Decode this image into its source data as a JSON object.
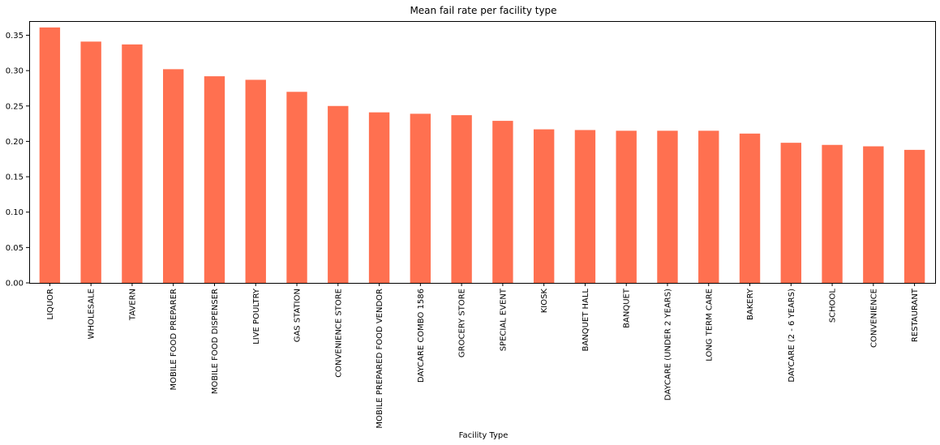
{
  "chart_data": {
    "type": "bar",
    "title": "Mean fail rate per facility type",
    "xlabel": "Facility Type",
    "ylabel": "",
    "ylim": [
      0,
      0.37
    ],
    "yticks": [
      0.0,
      0.05,
      0.1,
      0.15,
      0.2,
      0.25,
      0.3,
      0.35
    ],
    "ytick_labels": [
      "0.00",
      "0.05",
      "0.10",
      "0.15",
      "0.20",
      "0.25",
      "0.30",
      "0.35"
    ],
    "grid": false,
    "bar_color": "#ff7050",
    "categories": [
      "LIQUOR",
      "WHOLESALE",
      "TAVERN",
      "MOBILE FOOD PREPARER",
      "MOBILE FOOD DISPENSER",
      "LIVE POULTRY",
      "GAS STATION",
      "CONVENIENCE STORE",
      "MOBILE PREPARED FOOD VENDOR",
      "DAYCARE COMBO 1586",
      "GROCERY STORE",
      "SPECIAL EVENT",
      "KIOSK",
      "BANQUET HALL",
      "BANQUET",
      "DAYCARE (UNDER 2 YEARS)",
      "LONG TERM CARE",
      "BAKERY",
      "DAYCARE (2 - 6 YEARS)",
      "SCHOOL",
      "CONVENIENCE",
      "RESTAURANT"
    ],
    "values": [
      0.361,
      0.341,
      0.337,
      0.302,
      0.292,
      0.287,
      0.27,
      0.25,
      0.241,
      0.239,
      0.237,
      0.229,
      0.217,
      0.216,
      0.215,
      0.215,
      0.215,
      0.211,
      0.198,
      0.195,
      0.193,
      0.188
    ]
  }
}
